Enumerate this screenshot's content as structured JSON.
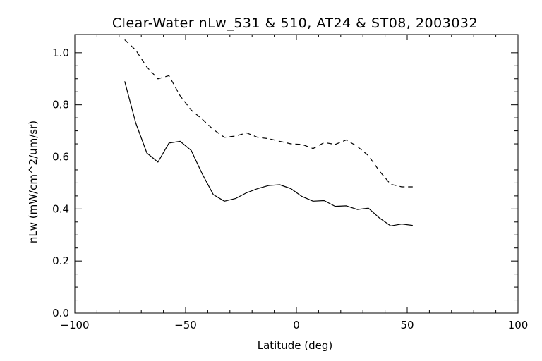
{
  "chart_data": {
    "type": "line",
    "title": "Clear-Water nLw_531 & 510, AT24 & ST08, 2003032",
    "xlabel": "Latitude (deg)",
    "ylabel": "nLw (mW/cm^2/um/sr)",
    "xlim": [
      -100,
      100
    ],
    "ylim": [
      0.0,
      1.07
    ],
    "xticks": [
      -100,
      -50,
      0,
      50,
      100
    ],
    "xtick_labels": [
      "−100",
      "−50",
      "0",
      "50",
      "100"
    ],
    "yticks": [
      0.0,
      0.2,
      0.4,
      0.6,
      0.8,
      1.0
    ],
    "ytick_labels": [
      "0.0",
      "0.2",
      "0.4",
      "0.6",
      "0.8",
      "1.0"
    ],
    "grid": false,
    "series": [
      {
        "style": "solid",
        "color": "#000000",
        "x": [
          -77.5,
          -72.5,
          -67.5,
          -62.5,
          -57.5,
          -52.5,
          -47.5,
          -42.5,
          -37.5,
          -32.5,
          -27.5,
          -22.5,
          -17.5,
          -12.5,
          -7.5,
          -2.5,
          2.5,
          7.5,
          12.5,
          17.5,
          22.5,
          27.5,
          32.5,
          37.5,
          42.5,
          47.5,
          52.5
        ],
        "y": [
          0.89,
          0.73,
          0.615,
          0.58,
          0.653,
          0.66,
          0.625,
          0.535,
          0.455,
          0.43,
          0.44,
          0.462,
          0.478,
          0.49,
          0.493,
          0.478,
          0.448,
          0.43,
          0.432,
          0.41,
          0.412,
          0.398,
          0.403,
          0.365,
          0.335,
          0.342,
          0.337
        ]
      },
      {
        "style": "dashed",
        "color": "#000000",
        "x": [
          -77.5,
          -72.5,
          -67.5,
          -62.5,
          -57.5,
          -52.5,
          -47.5,
          -42.5,
          -37.5,
          -32.5,
          -27.5,
          -22.5,
          -17.5,
          -12.5,
          -7.5,
          -2.5,
          2.5,
          7.5,
          12.5,
          17.5,
          22.5,
          27.5,
          32.5,
          37.5,
          42.5,
          47.5,
          52.5
        ],
        "y": [
          1.05,
          1.01,
          0.945,
          0.9,
          0.912,
          0.835,
          0.78,
          0.745,
          0.705,
          0.675,
          0.68,
          0.692,
          0.675,
          0.67,
          0.66,
          0.65,
          0.648,
          0.632,
          0.655,
          0.648,
          0.665,
          0.64,
          0.605,
          0.545,
          0.495,
          0.485,
          0.485
        ]
      }
    ]
  }
}
